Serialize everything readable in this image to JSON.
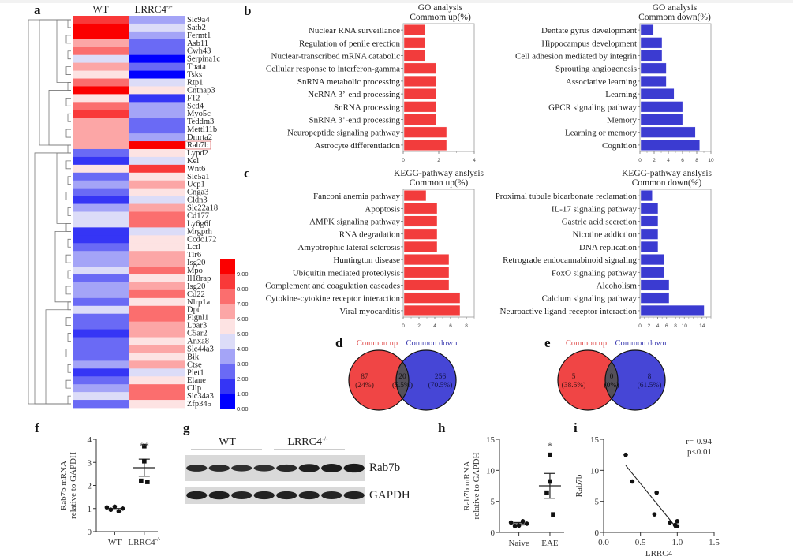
{
  "panels": {
    "a": "a",
    "b": "b",
    "c": "c",
    "d": "d",
    "e": "e",
    "f": "f",
    "g": "g",
    "h": "h",
    "i": "i"
  },
  "chart_data": [
    {
      "id": "a",
      "type": "heatmap",
      "columns": [
        "WT",
        "LRRC4-/-"
      ],
      "column_sup": [
        "",
        "-/-"
      ],
      "rows": [
        "Slc9a4",
        "Satb2",
        "Fermt1",
        "Asb11",
        "Cwh43",
        "Serpina1c",
        "Tbata",
        "Tsks",
        "Rtp1",
        "Cntnap3",
        "F12",
        "Scd4",
        "Myo5c",
        "Teddm3",
        "Mettl11b",
        "Dmrta2",
        "Rab7b",
        "Lypd2",
        "Kel",
        "Wnt6",
        "Slc5a1",
        "Ucp1",
        "Cnga3",
        "Cldn3",
        "Slc22a18",
        "Cd177",
        "Ly6g6f",
        "Mrgprh",
        "Ccdc172",
        "Lctl",
        "Tlr6",
        "Isg20",
        "Mpo",
        "Il18rap",
        "Isg20",
        "Cd22",
        "Nlrp1a",
        "Dpt",
        "Fignl1",
        "Lpar3",
        "C5ar2",
        "Anxa8",
        "Slc44a3",
        "Bik",
        "Ctse",
        "Plet1",
        "Elane",
        "Cilp",
        "Slc34a3",
        "Zfp345"
      ],
      "highlighted_row": "Rab7b",
      "values": [
        [
          8.5,
          3.5
        ],
        [
          9.5,
          4.5
        ],
        [
          9.5,
          3.5
        ],
        [
          6.5,
          2.5
        ],
        [
          7.5,
          2.5
        ],
        [
          4.5,
          0.5
        ],
        [
          6.5,
          2.5
        ],
        [
          5.5,
          0.5
        ],
        [
          7.5,
          4.5
        ],
        [
          9.5,
          5.5
        ],
        [
          5.5,
          1.5
        ],
        [
          7.5,
          3.5
        ],
        [
          8.5,
          3.5
        ],
        [
          6.5,
          2.5
        ],
        [
          6.5,
          2.5
        ],
        [
          6.5,
          3.5
        ],
        [
          6.5,
          9.5
        ],
        [
          2.5,
          5.5
        ],
        [
          1.5,
          4.5
        ],
        [
          5.5,
          8.5
        ],
        [
          2.5,
          5.5
        ],
        [
          3.5,
          6.5
        ],
        [
          2.5,
          5.5
        ],
        [
          1.5,
          4.5
        ],
        [
          3.5,
          6.5
        ],
        [
          4.5,
          7.5
        ],
        [
          4.5,
          7.5
        ],
        [
          1.5,
          4.5
        ],
        [
          1.5,
          5.5
        ],
        [
          2.5,
          5.5
        ],
        [
          3.5,
          6.5
        ],
        [
          3.5,
          6.5
        ],
        [
          4.5,
          7.5
        ],
        [
          2.5,
          5.5
        ],
        [
          3.5,
          6.5
        ],
        [
          3.5,
          7.5
        ],
        [
          2.5,
          5.5
        ],
        [
          4.5,
          7.5
        ],
        [
          2.5,
          7.5
        ],
        [
          2.5,
          6.5
        ],
        [
          1.5,
          6.5
        ],
        [
          2.5,
          5.5
        ],
        [
          2.5,
          6.5
        ],
        [
          2.5,
          5.5
        ],
        [
          3.5,
          6.5
        ],
        [
          1.5,
          4.5
        ],
        [
          2.5,
          5.5
        ],
        [
          3.5,
          7.5
        ],
        [
          4.5,
          7.5
        ],
        [
          2.5,
          5.5
        ]
      ],
      "colorbar": {
        "ticks": [
          "9.00",
          "8.00",
          "7.00",
          "6.00",
          "5.00",
          "4.00",
          "3.00",
          "2.00",
          "1.00",
          "0.00"
        ],
        "range": [
          0,
          10
        ],
        "colors": [
          "#0000ff",
          "#3535f5",
          "#6a6af5",
          "#a4a4f7",
          "#dcdcf8",
          "#fde3e3",
          "#fca6a6",
          "#fb6e6e",
          "#f93939",
          "#fb0000"
        ]
      }
    },
    {
      "id": "b-up",
      "type": "bar",
      "orientation": "horizontal",
      "title": "GO analysis",
      "subtitle": "Commom up(%)",
      "categories": [
        "Nuclear RNA surveillance",
        "Regulation of penile erection",
        "Nuclear-transcribed mRNA catabolic",
        "Cellular response to interferon-gamma",
        "SnRNA metabolic processing",
        "NcRNA 3’-end processing",
        "SnRNA processing",
        "SnRNA 3’-end processing",
        "Neuropeptide signaling pathway",
        "Astrocyte differentiation"
      ],
      "values": [
        1.2,
        1.2,
        1.2,
        1.8,
        1.8,
        1.8,
        1.8,
        1.8,
        2.4,
        2.4
      ],
      "xlim": [
        0,
        4
      ],
      "xticks": [
        "0",
        "2",
        "4"
      ],
      "color": "#f23c3c"
    },
    {
      "id": "b-down",
      "type": "bar",
      "orientation": "horizontal",
      "title": "GO analysis",
      "subtitle": "Commom down(%)",
      "categories": [
        "Dentate gyrus development",
        "Hippocampus development",
        "Cell adhesion mediated by integrin",
        "Sprouting angiogenesis",
        "Associative learning",
        "Learning",
        "GPCR signaling pathway",
        "Memory",
        "Learning or memory",
        "Cognition"
      ],
      "values": [
        1.8,
        3.0,
        3.0,
        3.6,
        3.6,
        4.7,
        5.9,
        5.9,
        7.7,
        8.3
      ],
      "xlim": [
        0,
        10
      ],
      "xticks": [
        "0",
        "2",
        "4",
        "6",
        "8",
        "10"
      ],
      "color": "#3b3bd1"
    },
    {
      "id": "c-up",
      "type": "bar",
      "orientation": "horizontal",
      "title": "KEGG-pathway anslysis",
      "subtitle": "Common up(%)",
      "categories": [
        "Fanconi anemia pathway",
        "Apoptosis",
        "AMPK signaling pathway",
        "RNA degradation",
        "Amyotrophic lateral sclerosis",
        "Huntington disease",
        "Ubiquitin mediated proteolysis",
        "Complement and coagulation cascades",
        "Cytokine-cytokine receptor interaction",
        "Viral myocarditis"
      ],
      "values": [
        2.8,
        4.2,
        4.2,
        4.2,
        4.2,
        5.7,
        5.7,
        5.7,
        7.1,
        7.1
      ],
      "xlim": [
        0,
        9
      ],
      "xticks": [
        "0",
        "2",
        "4",
        "6",
        "8"
      ],
      "color": "#f23c3c"
    },
    {
      "id": "c-down",
      "type": "bar",
      "orientation": "horizontal",
      "title": "KEGG-pathway anslysis",
      "subtitle": "Common down(%)",
      "categories": [
        "Proximal tubule bicarbonate reclamation",
        "IL-17 signaling pathway",
        "Gastric acid secretion",
        "Nicotine addiction",
        "DNA replication",
        "Retrograde endocannabinoid signaling",
        "FoxO signaling pathway",
        "Alcoholism",
        "Calcium signaling pathway",
        "Neuroactive ligand-receptor interaction"
      ],
      "values": [
        2.6,
        3.9,
        3.9,
        3.9,
        3.9,
        5.2,
        5.2,
        6.4,
        6.4,
        14.3
      ],
      "xlim": [
        0,
        16
      ],
      "xticks": [
        "0",
        "2",
        "4",
        "6",
        "8",
        "10",
        "14"
      ],
      "xtick_values": [
        0,
        2,
        4,
        6,
        8,
        10,
        14
      ],
      "color": "#3b3bd1"
    },
    {
      "id": "d",
      "type": "venn",
      "labels": [
        "Common up",
        "Common down"
      ],
      "regions": [
        {
          "count": "87",
          "pct": "(24%)"
        },
        {
          "count": "20",
          "pct": "(5.5%)"
        },
        {
          "count": "256",
          "pct": "(70.5%)"
        }
      ],
      "colors": {
        "up": "#f04545",
        "down": "#4646d6",
        "overlap": "#555059",
        "up_label": "#e0504f",
        "down_label": "#3c3cb0"
      }
    },
    {
      "id": "e",
      "type": "venn",
      "labels": [
        "Common up",
        "Common down"
      ],
      "regions": [
        {
          "count": "5",
          "pct": "(38.5%)"
        },
        {
          "count": "0",
          "pct": "(0%)"
        },
        {
          "count": "8",
          "pct": "(61.5%)"
        }
      ],
      "colors": {
        "up": "#f04545",
        "down": "#4646d6",
        "overlap": "#555059",
        "up_label": "#e0504f",
        "down_label": "#3c3cb0"
      }
    },
    {
      "id": "f",
      "type": "scatter",
      "ylabel": [
        "Rab7b mRNA",
        "relative to GAPDH"
      ],
      "categories": [
        "WT",
        "LRRC4-/-"
      ],
      "ylim": [
        0,
        4
      ],
      "yticks": [
        "0",
        "1",
        "2",
        "3",
        "4"
      ],
      "groups": [
        {
          "name": "WT",
          "marker": "circle",
          "points": [
            1.05,
            0.95,
            1.08,
            0.88,
            1.0
          ],
          "mean": 1.0,
          "sem": 0.04
        },
        {
          "name": "LRRC4-/-",
          "marker": "square",
          "points": [
            3.7,
            3.05,
            2.2,
            2.15
          ],
          "mean": 2.77,
          "sem": 0.37
        }
      ],
      "significance": "**"
    },
    {
      "id": "g",
      "type": "blot",
      "groups": [
        "WT",
        "LRRC4-/-"
      ],
      "bands": [
        "Rab7b",
        "GAPDH"
      ],
      "lanes": 8,
      "rab7b_intensity": [
        0.55,
        0.55,
        0.45,
        0.45,
        0.6,
        0.8,
        0.85,
        0.9
      ],
      "gapdh_intensity": [
        0.8,
        0.8,
        0.7,
        0.75,
        0.75,
        0.75,
        0.7,
        0.75
      ]
    },
    {
      "id": "h",
      "type": "scatter",
      "ylabel": [
        "Rab7b mRNA",
        "relative to GAPDH"
      ],
      "categories": [
        "Naive",
        "EAE"
      ],
      "ylim": [
        0,
        15
      ],
      "yticks": [
        "0",
        "5",
        "10",
        "15"
      ],
      "groups": [
        {
          "name": "Naive",
          "marker": "circle",
          "points": [
            1.6,
            1.0,
            1.1,
            1.8,
            1.4
          ],
          "mean": 1.4,
          "sem": 0.2
        },
        {
          "name": "EAE",
          "marker": "square",
          "points": [
            12.5,
            8.2,
            6.4,
            2.9
          ],
          "mean": 7.5,
          "sem": 2.0
        }
      ],
      "significance": "*"
    },
    {
      "id": "i",
      "type": "scatter",
      "xlabel": "LRRC4",
      "ylabel": "Rab7b",
      "xlim": [
        0,
        1.5
      ],
      "ylim": [
        0,
        15
      ],
      "xticks": [
        "0.0",
        "0.5",
        "1.0",
        "1.5"
      ],
      "yticks": [
        "0",
        "5",
        "10",
        "15"
      ],
      "points": [
        [
          0.3,
          12.5
        ],
        [
          0.39,
          8.2
        ],
        [
          0.72,
          6.4
        ],
        [
          0.69,
          2.9
        ],
        [
          0.9,
          1.6
        ],
        [
          0.97,
          1.2
        ],
        [
          1.0,
          1.8
        ],
        [
          1.0,
          1.0
        ],
        [
          0.98,
          1.0
        ]
      ],
      "fit": [
        [
          0.3,
          10.8
        ],
        [
          0.95,
          1.3
        ]
      ],
      "annotation": [
        "r=-0.94",
        "p<0.01"
      ]
    }
  ]
}
